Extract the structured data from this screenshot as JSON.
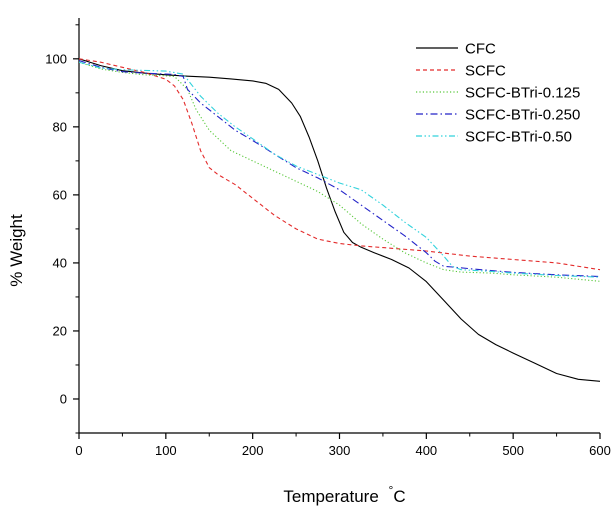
{
  "chart_data": {
    "type": "line",
    "xlabel": "Temperature",
    "xlabel_unit": "°C",
    "ylabel": "% Weight",
    "xlim": [
      0,
      600
    ],
    "ylim": [
      -10,
      112
    ],
    "xticks": [
      0,
      100,
      200,
      300,
      400,
      500,
      600
    ],
    "yticks": [
      0,
      20,
      40,
      60,
      80,
      100
    ],
    "grid": false,
    "legend_position": "top-right",
    "series": [
      {
        "name": "CFC",
        "color": "#000000",
        "dash": "solid",
        "x": [
          0,
          25,
          50,
          75,
          100,
          125,
          150,
          175,
          200,
          215,
          230,
          245,
          255,
          265,
          275,
          285,
          295,
          305,
          315,
          325,
          340,
          360,
          380,
          400,
          420,
          440,
          460,
          480,
          500,
          525,
          550,
          575,
          600
        ],
        "y": [
          100,
          98,
          96.5,
          95.8,
          95.3,
          94.9,
          94.6,
          94.1,
          93.5,
          92.8,
          91,
          87,
          83,
          77,
          70,
          62,
          55,
          49,
          46,
          44.6,
          43,
          41,
          38.5,
          34.5,
          29,
          23.5,
          19,
          16,
          13.5,
          10.5,
          7.5,
          5.8,
          5.2
        ]
      },
      {
        "name": "SCFC",
        "color": "#e32b2b",
        "dash": "dashed",
        "x": [
          0,
          25,
          50,
          75,
          100,
          110,
          120,
          130,
          140,
          150,
          160,
          180,
          200,
          225,
          250,
          275,
          300,
          325,
          350,
          400,
          450,
          500,
          550,
          600
        ],
        "y": [
          100,
          99,
          97.5,
          96,
          94,
          92,
          88,
          81,
          73,
          68,
          66,
          63,
          59,
          54,
          50,
          47,
          45.7,
          45,
          44.5,
          43.5,
          42,
          41,
          40,
          38
        ]
      },
      {
        "name": "SCFC-BTri-0.125",
        "color": "#58c83a",
        "dash": "dotted",
        "x": [
          0,
          25,
          50,
          75,
          100,
          110,
          125,
          135,
          150,
          175,
          200,
          225,
          250,
          275,
          300,
          325,
          350,
          375,
          400,
          420,
          440,
          475,
          500,
          550,
          600
        ],
        "y": [
          99,
          97,
          96,
          95.3,
          95,
          94.8,
          91,
          85,
          79,
          73,
          70,
          67,
          64,
          61,
          57,
          51.5,
          47,
          43,
          40,
          38,
          37.3,
          37,
          36.5,
          35.8,
          34.6
        ]
      },
      {
        "name": "SCFC-BTri-0.250",
        "color": "#2323c8",
        "dash": "dashdot",
        "x": [
          0,
          25,
          50,
          75,
          100,
          110,
          120,
          125,
          140,
          160,
          180,
          200,
          225,
          250,
          275,
          300,
          325,
          350,
          375,
          400,
          410,
          420,
          430,
          450,
          500,
          550,
          600
        ],
        "y": [
          99.5,
          97.5,
          96.2,
          95.8,
          95.5,
          95.4,
          94.8,
          91,
          87,
          83,
          79,
          76,
          72,
          68,
          65,
          61.5,
          57,
          52.5,
          48,
          43,
          40.5,
          39,
          38.8,
          38.3,
          37.2,
          36.5,
          36
        ]
      },
      {
        "name": "SCFC-BTri-0.50",
        "color": "#32d2dc",
        "dash": "dashdotdot",
        "x": [
          0,
          25,
          50,
          75,
          100,
          120,
          140,
          160,
          180,
          200,
          225,
          250,
          275,
          300,
          325,
          350,
          375,
          400,
          420,
          430,
          440,
          475,
          500,
          550,
          600
        ],
        "y": [
          99,
          97.3,
          96.8,
          96.6,
          96.4,
          95.5,
          89,
          84,
          80,
          76.5,
          72,
          68.5,
          66,
          63.5,
          61.5,
          57,
          52,
          47.5,
          42,
          39,
          38,
          37.5,
          37,
          36.3,
          35.8
        ]
      }
    ]
  }
}
